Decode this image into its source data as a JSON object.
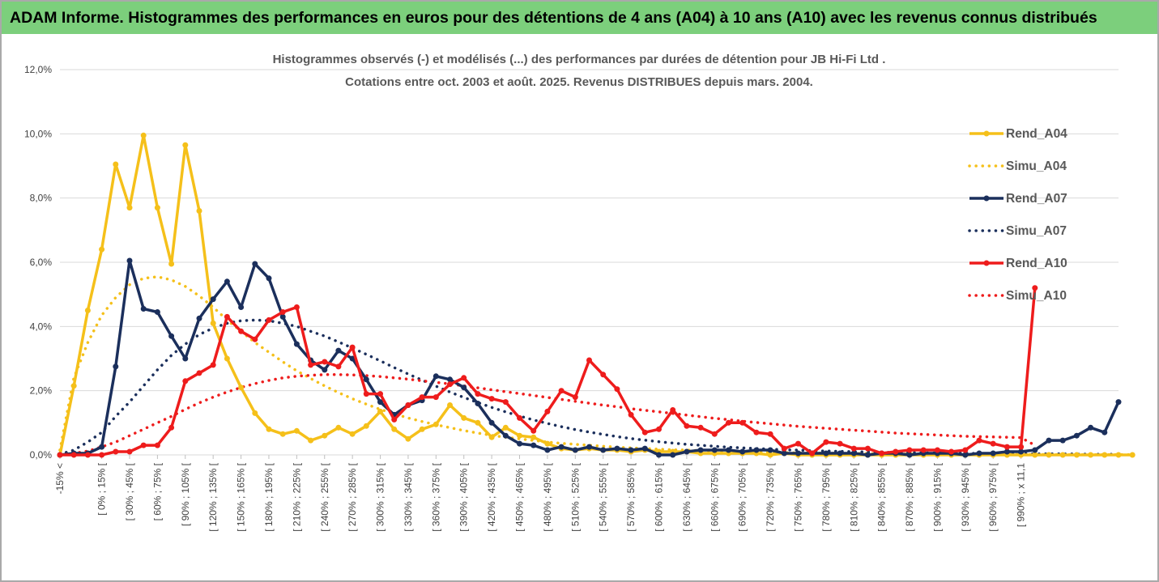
{
  "header": {
    "title": "ADAM Informe. Histogrammes des performances en euros pour des détentions de 4 ans (A04) à 10 ans (A10) avec les revenus connus distribués"
  },
  "chart_data": {
    "type": "line",
    "title_line1": "Histogrammes observés (-) et modélisés (...) des performances par durées de détention pour JB Hi-Fi Ltd .",
    "title_line2": "Cotations entre oct. 2003 et août. 2025. Revenus DISTRIBUES depuis mars. 2004.",
    "ylim": [
      0,
      12
    ],
    "y_ticks": [
      "0,0%",
      "2,0%",
      "4,0%",
      "6,0%",
      "8,0%",
      "10,0%",
      "12,0%"
    ],
    "grid": true,
    "legend_position": "right",
    "x_labels_shown": [
      "-15% <",
      "[ 0% ; 15% [",
      "[ 30% ; 45% [",
      "[ 60% ; 75% [",
      "[ 90% ; 105% [",
      "[ 120% ; 135% [",
      "[ 150% ; 165% [",
      "[ 180% ; 195% [",
      "[ 210% ; 225% [",
      "[ 240% ; 255% [",
      "[ 270% ; 285% [",
      "[ 300% ; 315% [",
      "[ 330% ; 345% [",
      "[ 360% ; 375% [",
      "[ 390% ; 405% [",
      "[ 420% ; 435% [",
      "[ 450% ; 465% [",
      "[ 480% ; 495% [",
      "[ 510% ; 525% [",
      "[ 540% ; 555% [",
      "[ 570% ; 585% [",
      "[ 600% ; 615% [",
      "[ 630% ; 645% [",
      "[ 660% ; 675% [",
      "[ 690% ; 705% [",
      "[ 720% ; 735% [",
      "[ 750% ; 765% [",
      "[ 780% ; 795% [",
      "[ 810% ; 825% [",
      "[ 840% ; 855% [",
      "[ 870% ; 885% [",
      "[ 900% ; 915% [",
      "[ 930% ; 945% [",
      "[ 960% ; 975% [",
      "[ 990% ; x 11,1"
    ],
    "series": [
      {
        "name": "Rend_A04",
        "color": "#f5c01a",
        "style": "solid",
        "markers": true,
        "values": [
          0,
          2.15,
          4.5,
          6.4,
          9.05,
          7.7,
          9.95,
          7.7,
          5.95,
          9.65,
          7.6,
          4.1,
          3.0,
          2.1,
          1.3,
          0.8,
          0.65,
          0.75,
          0.45,
          0.6,
          0.85,
          0.65,
          0.9,
          1.35,
          0.8,
          0.5,
          0.8,
          0.95,
          1.55,
          1.15,
          1.0,
          0.55,
          0.85,
          0.6,
          0.55,
          0.35,
          0.2,
          0.15,
          0.2,
          0.15,
          0.15,
          0.1,
          0.15,
          0.1,
          0.1,
          0.1,
          0.05,
          0.05,
          0.05,
          0.05,
          0.05,
          0,
          0.05,
          0,
          0,
          0,
          0,
          0,
          0,
          0,
          0,
          0,
          0,
          0,
          0,
          0,
          0,
          0,
          0,
          0,
          0,
          0,
          0,
          0,
          0,
          0,
          0,
          0
        ]
      },
      {
        "name": "Simu_A04",
        "color": "#f5c01a",
        "style": "dotted",
        "markers": false,
        "values": [
          0.15,
          2.4,
          3.5,
          4.35,
          4.9,
          5.3,
          5.5,
          5.55,
          5.45,
          5.25,
          4.95,
          4.6,
          4.2,
          3.85,
          3.5,
          3.2,
          2.9,
          2.62,
          2.38,
          2.15,
          1.94,
          1.75,
          1.58,
          1.42,
          1.28,
          1.15,
          1.04,
          0.94,
          0.85,
          0.76,
          0.68,
          0.61,
          0.55,
          0.5,
          0.45,
          0.4,
          0.36,
          0.33,
          0.3,
          0.27,
          0.24,
          0.22,
          0.2,
          0.18,
          0.16,
          0.15,
          0.13,
          0.12,
          0.11,
          0.1,
          0.09,
          0.08,
          0.07,
          0.065,
          0.06,
          0.055,
          0.05,
          0.045,
          0.04,
          0.036,
          0.033,
          0.03,
          0.027,
          0.024,
          0.022,
          0.02,
          0.018,
          0.016,
          0.015,
          0.013,
          0.012,
          0.011,
          0.01,
          0.01,
          0.01,
          0.01,
          0.01,
          0.01
        ]
      },
      {
        "name": "Rend_A07",
        "color": "#1b2f5c",
        "style": "solid",
        "markers": true,
        "values": [
          0,
          0.05,
          0.05,
          0.25,
          2.75,
          6.05,
          4.55,
          4.45,
          3.7,
          3.0,
          4.25,
          4.85,
          5.4,
          4.6,
          5.95,
          5.5,
          4.3,
          3.45,
          2.95,
          2.65,
          3.25,
          3.0,
          2.35,
          1.65,
          1.25,
          1.55,
          1.7,
          2.45,
          2.35,
          2.1,
          1.6,
          1.0,
          0.6,
          0.35,
          0.3,
          0.15,
          0.25,
          0.15,
          0.25,
          0.15,
          0.2,
          0.15,
          0.2,
          0.0,
          0.0,
          0.1,
          0.15,
          0.15,
          0.15,
          0.1,
          0.15,
          0.15,
          0.05,
          0.05,
          0.05,
          0.05,
          0.05,
          0.05,
          0.0,
          0.05,
          0.05,
          0.0,
          0.05,
          0.05,
          0.05,
          0.0,
          0.05,
          0.05,
          0.1,
          0.1,
          0.15,
          0.45,
          0.45,
          0.6,
          0.85,
          0.7,
          1.65
        ]
      },
      {
        "name": "Simu_A07",
        "color": "#1b2f5c",
        "style": "dotted",
        "markers": false,
        "values": [
          0.02,
          0.15,
          0.4,
          0.7,
          1.2,
          1.65,
          2.15,
          2.65,
          3.1,
          3.45,
          3.75,
          3.95,
          4.1,
          4.18,
          4.2,
          4.18,
          4.1,
          4.0,
          3.85,
          3.7,
          3.52,
          3.33,
          3.13,
          2.93,
          2.72,
          2.52,
          2.33,
          2.14,
          1.96,
          1.79,
          1.63,
          1.48,
          1.34,
          1.21,
          1.09,
          0.98,
          0.88,
          0.79,
          0.71,
          0.64,
          0.57,
          0.51,
          0.46,
          0.41,
          0.37,
          0.33,
          0.3,
          0.27,
          0.24,
          0.22,
          0.2,
          0.18,
          0.16,
          0.15,
          0.13,
          0.12,
          0.11,
          0.1,
          0.09,
          0.08,
          0.075,
          0.07,
          0.065,
          0.06,
          0.055,
          0.05,
          0.045,
          0.04,
          0.04,
          0.035,
          0.03,
          0.03,
          0.03,
          0.025,
          0.02,
          0.02,
          0.02
        ]
      },
      {
        "name": "Rend_A10",
        "color": "#ee1c1c",
        "style": "solid",
        "markers": true,
        "values": [
          0,
          0,
          0,
          0,
          0.1,
          0.1,
          0.3,
          0.3,
          0.85,
          2.3,
          2.55,
          2.8,
          4.3,
          3.85,
          3.6,
          4.2,
          4.45,
          4.6,
          2.8,
          2.9,
          2.75,
          3.35,
          1.9,
          1.9,
          1.1,
          1.55,
          1.8,
          1.8,
          2.2,
          2.4,
          1.9,
          1.75,
          1.65,
          1.15,
          0.75,
          1.35,
          2.0,
          1.8,
          2.95,
          2.5,
          2.05,
          1.25,
          0.7,
          0.8,
          1.4,
          0.9,
          0.85,
          0.65,
          1.0,
          1.0,
          0.7,
          0.65,
          0.2,
          0.35,
          0.05,
          0.4,
          0.35,
          0.2,
          0.2,
          0.05,
          0.1,
          0.15,
          0.15,
          0.15,
          0.1,
          0.15,
          0.45,
          0.35,
          0.25,
          0.25,
          5.2
        ]
      },
      {
        "name": "Simu_A10",
        "color": "#ee1c1c",
        "style": "dotted",
        "markers": false,
        "values": [
          0.02,
          0.05,
          0.12,
          0.25,
          0.4,
          0.6,
          0.8,
          1.0,
          1.2,
          1.42,
          1.62,
          1.8,
          1.96,
          2.1,
          2.22,
          2.32,
          2.4,
          2.45,
          2.48,
          2.5,
          2.5,
          2.49,
          2.47,
          2.44,
          2.4,
          2.36,
          2.31,
          2.26,
          2.21,
          2.15,
          2.09,
          2.03,
          1.97,
          1.91,
          1.85,
          1.79,
          1.73,
          1.67,
          1.61,
          1.55,
          1.5,
          1.44,
          1.39,
          1.34,
          1.29,
          1.24,
          1.19,
          1.14,
          1.1,
          1.05,
          1.01,
          0.97,
          0.93,
          0.89,
          0.86,
          0.83,
          0.8,
          0.77,
          0.74,
          0.71,
          0.68,
          0.66,
          0.64,
          0.62,
          0.6,
          0.58,
          0.57,
          0.56,
          0.55,
          0.54,
          0.3
        ]
      }
    ]
  }
}
